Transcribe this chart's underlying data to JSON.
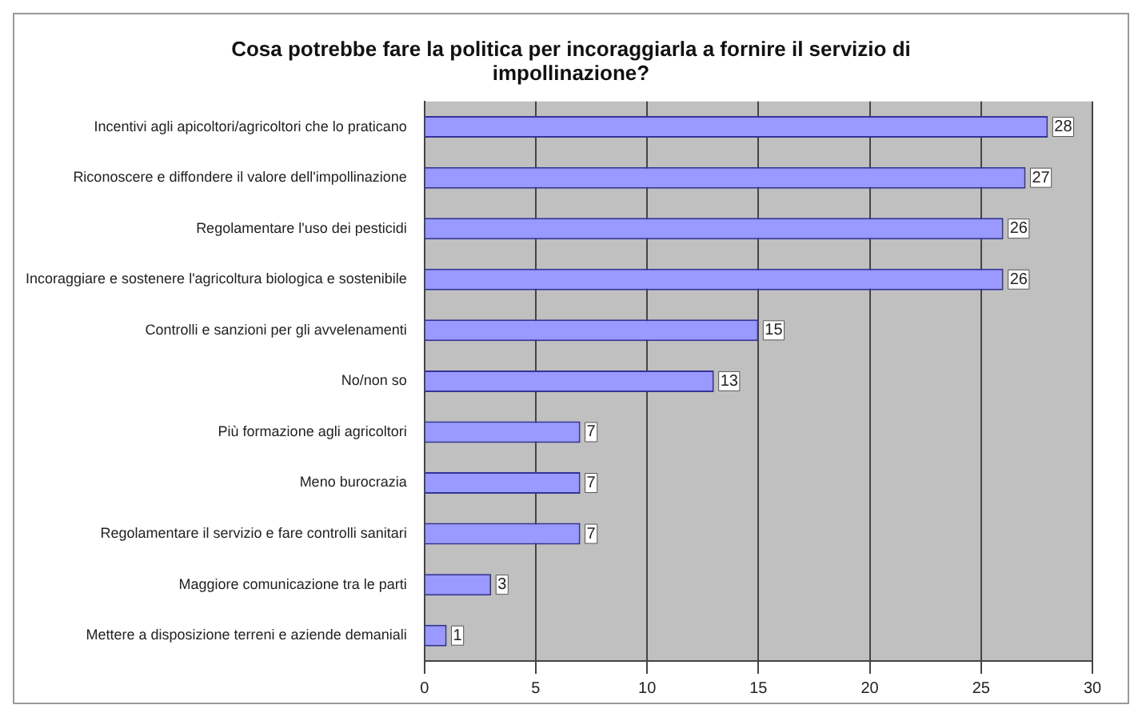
{
  "chart_data": {
    "type": "bar",
    "orientation": "horizontal",
    "title": "Cosa potrebbe fare la politica per incoraggiarla a fornire il servizio di impollinazione?",
    "categories": [
      "Incentivi agli apicoltori/agricoltori che lo praticano",
      "Riconoscere e diffondere il valore dell'impollinazione",
      "Regolamentare l'uso dei pesticidi",
      "Incoraggiare e sostenere l'agricoltura biologica e sostenibile",
      "Controlli e sanzioni per gli avvelenamenti",
      "No/non so",
      "Più formazione agli agricoltori",
      "Meno burocrazia",
      "Regolamentare il servizio e fare controlli sanitari",
      "Maggiore comunicazione tra le parti",
      "Mettere a disposizione terreni e aziende demaniali"
    ],
    "values": [
      28,
      27,
      26,
      26,
      15,
      13,
      7,
      7,
      7,
      3,
      1
    ],
    "color": "#9999ff",
    "xlim": [
      0,
      30
    ],
    "xticks": [
      0,
      5,
      10,
      15,
      20,
      25,
      30
    ],
    "grid": "x",
    "data_labels": true
  }
}
